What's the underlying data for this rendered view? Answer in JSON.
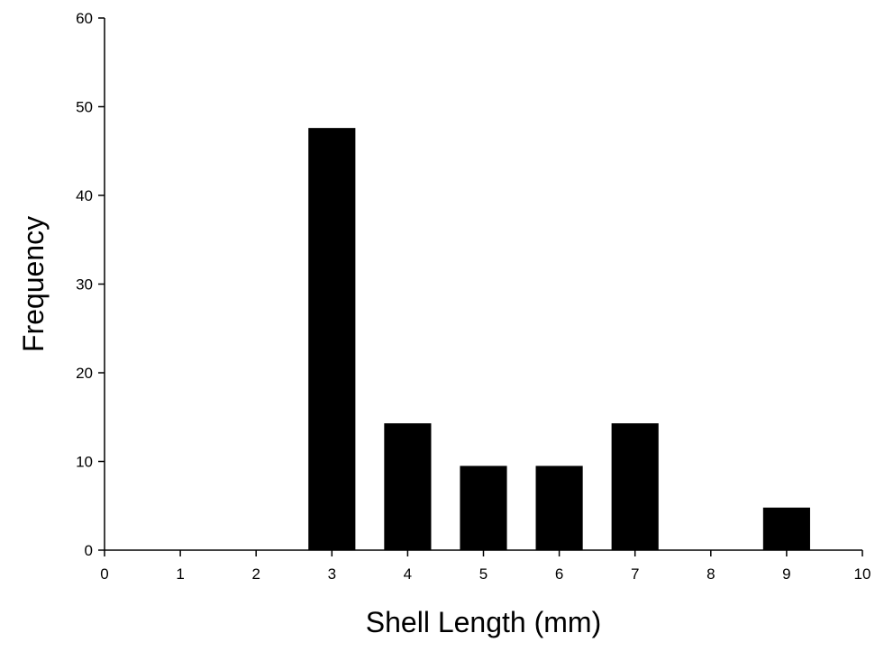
{
  "chart_data": {
    "type": "bar",
    "title": "",
    "xlabel": "Shell Length (mm)",
    "ylabel": "Frequency",
    "xlim": [
      0,
      10
    ],
    "ylim": [
      0,
      60
    ],
    "x_ticks": [
      "0",
      "1",
      "2",
      "3",
      "4",
      "5",
      "6",
      "7",
      "8",
      "9",
      "10"
    ],
    "y_ticks": [
      "0",
      "10",
      "20",
      "30",
      "40",
      "50",
      "60"
    ],
    "grid": false,
    "legend": "none",
    "bar_color": "#000000",
    "x": [
      3,
      4,
      5,
      6,
      7,
      9
    ],
    "values": [
      47.6,
      14.3,
      9.5,
      9.5,
      14.3,
      4.8
    ]
  }
}
